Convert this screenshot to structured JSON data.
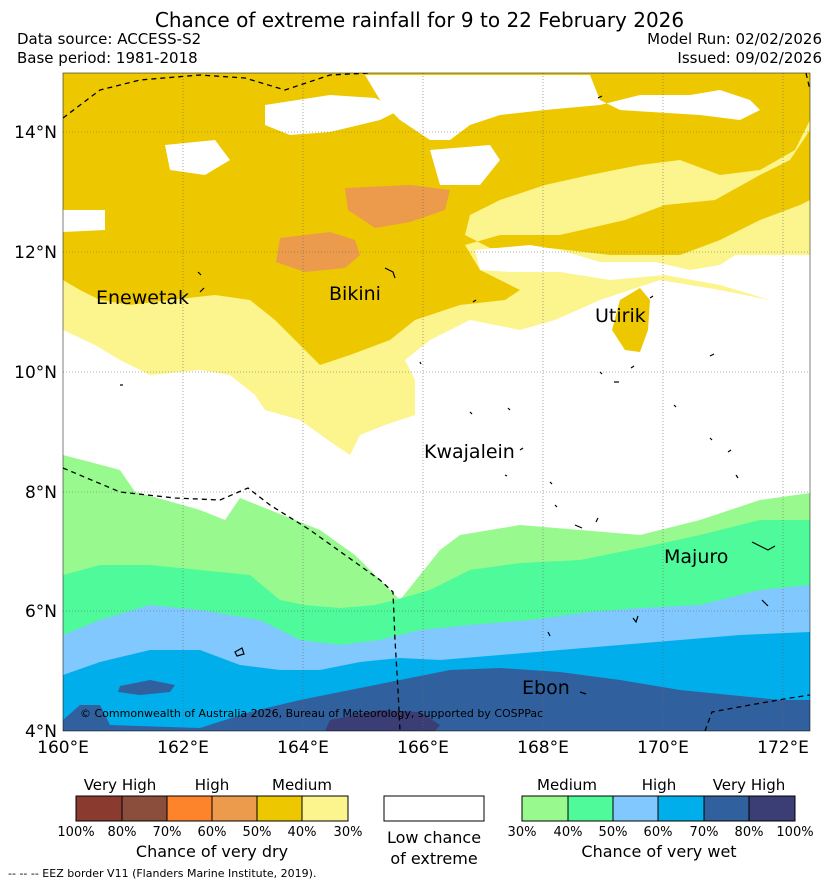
{
  "header": {
    "title": "Chance of extreme rainfall for 9 to 22 February 2026",
    "data_source": "Data source: ACCESS-S2",
    "base_period": "Base period: 1981-2018",
    "model_run": "Model Run: 02/02/2026",
    "issued": "Issued: 09/02/2026"
  },
  "map": {
    "lat_labels": [
      "14°N",
      "12°N",
      "10°N",
      "8°N",
      "6°N",
      "4°N"
    ],
    "lon_labels": [
      "160°E",
      "162°E",
      "164°E",
      "166°E",
      "168°E",
      "170°E",
      "172°E"
    ],
    "places": {
      "enewetak": "Enewetak",
      "bikini": "Bikini",
      "utirik": "Utirik",
      "kwajalein": "Kwajalein",
      "majuro": "Majuro",
      "ebon": "Ebon"
    },
    "copyright": "© Commonwealth of Australia 2026, Bureau of Meteorology, supported by COSPPac",
    "colors": {
      "dry_very_high_1": "#8b3a30",
      "dry_very_high_2": "#8b4e3c",
      "dry_high_1": "#fe842c",
      "dry_high_2": "#eb9b4b",
      "dry_medium_1": "#edc800",
      "dry_medium_2": "#fcf48c",
      "wet_medium_1": "#98fa8e",
      "wet_medium_2": "#4ffa9a",
      "wet_high_1": "#80c8fe",
      "wet_high_2": "#00aeeb",
      "wet_very_high_1": "#31609e",
      "wet_very_high_2": "#3b3d75"
    }
  },
  "legend": {
    "dry": {
      "labels": [
        "Very High",
        "High",
        "Medium"
      ],
      "ticks": [
        "100%",
        "80%",
        "70%",
        "60%",
        "50%",
        "40%",
        "30%"
      ],
      "caption": "Chance of very dry"
    },
    "low": {
      "caption_line1": "Low chance",
      "caption_line2": "of extreme"
    },
    "wet": {
      "labels": [
        "Medium",
        "High",
        "Very High"
      ],
      "ticks": [
        "30%",
        "40%",
        "50%",
        "60%",
        "70%",
        "80%",
        "100%"
      ],
      "caption": "Chance of very wet"
    }
  },
  "footnote": "--  --  -- EEZ border V11 (Flanders Marine Institute, 2019)."
}
